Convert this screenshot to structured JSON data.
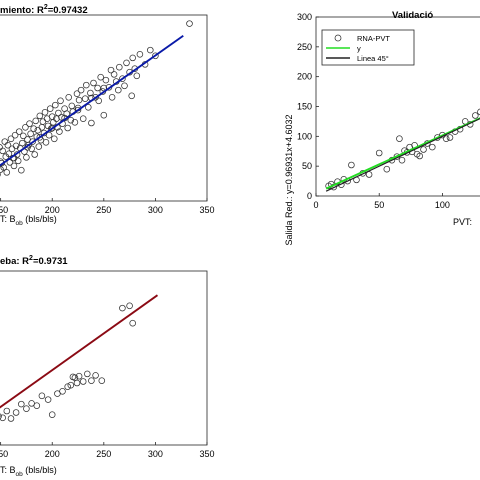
{
  "chart_data": [
    {
      "id": "train",
      "type": "scatter",
      "title_main": "miento: R",
      "title_sup": "2",
      "title_tail": "=0.97432",
      "xlabel_pre": "T: B",
      "xlabel_sub": "ob",
      "xlabel_post": " (bls/bls)",
      "xlim": [
        130,
        350
      ],
      "ylim": [
        85,
        345
      ],
      "xticks": [
        150,
        200,
        250,
        300,
        350
      ],
      "xticklabels": [
        "150",
        "200",
        "250",
        "300",
        "350"
      ],
      "grid": false,
      "colors": {
        "fit": "#0a1aa8",
        "marker": "#333333"
      },
      "fit": {
        "x": [
          130,
          327
        ],
        "y": [
          115,
          316
        ]
      },
      "points": {
        "x": [
          132,
          134,
          136,
          137,
          138,
          140,
          141,
          142,
          143,
          145,
          146,
          147,
          149,
          150,
          151,
          152,
          153,
          154,
          155,
          156,
          157,
          158,
          159,
          160,
          161,
          162,
          163,
          164,
          165,
          166,
          167,
          168,
          169,
          170,
          171,
          172,
          173,
          174,
          175,
          176,
          177,
          178,
          179,
          180,
          181,
          182,
          183,
          184,
          185,
          186,
          187,
          188,
          189,
          190,
          191,
          192,
          193,
          194,
          195,
          196,
          197,
          198,
          199,
          200,
          201,
          202,
          203,
          204,
          205,
          206,
          207,
          208,
          209,
          210,
          212,
          214,
          215,
          216,
          218,
          219,
          220,
          222,
          224,
          225,
          226,
          228,
          230,
          232,
          233,
          235,
          237,
          238,
          240,
          242,
          244,
          245,
          247,
          249,
          250,
          252,
          255,
          257,
          258,
          260,
          262,
          264,
          265,
          268,
          270,
          272,
          275,
          277,
          278,
          280,
          282,
          285,
          290,
          295,
          300,
          333,
          138,
          150,
          163,
          176,
          188,
          200,
          212,
          225,
          238,
          250
        ],
        "y": [
          118,
          132,
          112,
          142,
          126,
          136,
          150,
          104,
          155,
          131,
          148,
          122,
          160,
          140,
          138,
          155,
          132,
          168,
          147,
          125,
          163,
          151,
          139,
          172,
          158,
          145,
          134,
          177,
          162,
          150,
          141,
          182,
          159,
          128,
          166,
          176,
          154,
          188,
          146,
          171,
          163,
          193,
          179,
          158,
          168,
          186,
          150,
          197,
          175,
          184,
          161,
          204,
          170,
          188,
          196,
          180,
          209,
          167,
          200,
          190,
          177,
          214,
          186,
          203,
          195,
          172,
          219,
          200,
          188,
          208,
          182,
          225,
          202,
          193,
          214,
          207,
          187,
          230,
          198,
          218,
          210,
          195,
          235,
          212,
          226,
          240,
          200,
          228,
          247,
          216,
          236,
          194,
          250,
          230,
          243,
          225,
          258,
          238,
          205,
          254,
          244,
          268,
          230,
          262,
          252,
          240,
          272,
          256,
          246,
          278,
          265,
          232,
          285,
          270,
          260,
          290,
          276,
          296,
          288,
          333,
          108,
          129,
          145,
          160,
          174,
          187,
          201,
          215,
          229,
          243
        ]
      }
    },
    {
      "id": "valid",
      "type": "scatter",
      "title_main": "Validació",
      "xlabel_pre": "PVT:",
      "ylabel": "Salida Red.: y=0.96931x+4.6032",
      "xlim": [
        0,
        140
      ],
      "ylim": [
        0,
        300
      ],
      "xticks": [
        0,
        50,
        100
      ],
      "xticklabels": [
        "0",
        "50",
        "100"
      ],
      "yticks": [
        0,
        50,
        100,
        150,
        200,
        250,
        300
      ],
      "yticklabels": [
        "0",
        "50",
        "100",
        "150",
        "200",
        "250",
        "300"
      ],
      "grid": false,
      "colors": {
        "fit": "#22dd22",
        "diag": "#222222",
        "marker": "#333333"
      },
      "legend": {
        "placement": "top-left",
        "entries": [
          {
            "label": "RNA-PVT",
            "kind": "marker"
          },
          {
            "label": "y",
            "kind": "green"
          },
          {
            "label": "Linea 45°",
            "kind": "black"
          }
        ]
      },
      "fit": {
        "x": [
          8,
          140
        ],
        "y": [
          12.4,
          140.3
        ]
      },
      "diag": {
        "x": [
          8,
          140
        ],
        "y": [
          8,
          140
        ]
      },
      "points": {
        "x": [
          10,
          12,
          14,
          17,
          20,
          22,
          25,
          28,
          32,
          37,
          42,
          50,
          56,
          60,
          64,
          66,
          68,
          70,
          72,
          74,
          76,
          78,
          80,
          82,
          85,
          88,
          92,
          96,
          100,
          103,
          106,
          110,
          114,
          118,
          122,
          126,
          130,
          134,
          138
        ],
        "y": [
          17,
          20,
          15,
          24,
          19,
          28,
          25,
          52,
          27,
          38,
          36,
          72,
          45,
          60,
          66,
          96,
          60,
          76,
          73,
          82,
          74,
          85,
          70,
          67,
          78,
          88,
          82,
          98,
          102,
          96,
          98,
          108,
          112,
          125,
          120,
          135,
          141,
          128,
          138
        ]
      }
    },
    {
      "id": "test",
      "type": "scatter",
      "title_main": "eba: R",
      "title_sup": "2",
      "title_tail": "=0.9731",
      "xlabel_pre": "T: B",
      "xlabel_sub": "ob",
      "xlabel_post": " (bls/bls)",
      "xlim": [
        130,
        350
      ],
      "ylim": [
        115,
        345
      ],
      "xticks": [
        150,
        200,
        250,
        300,
        350
      ],
      "xticklabels": [
        "150",
        "200",
        "250",
        "300",
        "350"
      ],
      "grid": false,
      "colors": {
        "fit": "#8b0a14",
        "marker": "#333333"
      },
      "fit": {
        "x": [
          130,
          302
        ],
        "y": [
          146,
          313
        ]
      },
      "points": {
        "x": [
          136,
          140,
          144,
          148,
          152,
          156,
          160,
          165,
          170,
          175,
          180,
          185,
          190,
          196,
          200,
          205,
          210,
          215,
          218,
          220,
          222,
          224,
          226,
          230,
          234,
          238,
          242,
          248,
          268,
          275,
          278
        ],
        "y": [
          147,
          150,
          145,
          153,
          151,
          160,
          150,
          158,
          169,
          163,
          170,
          167,
          180,
          175,
          155,
          183,
          186,
          192,
          194,
          205,
          204,
          197,
          206,
          199,
          209,
          200,
          207,
          200,
          296,
          299,
          276
        ]
      }
    }
  ]
}
